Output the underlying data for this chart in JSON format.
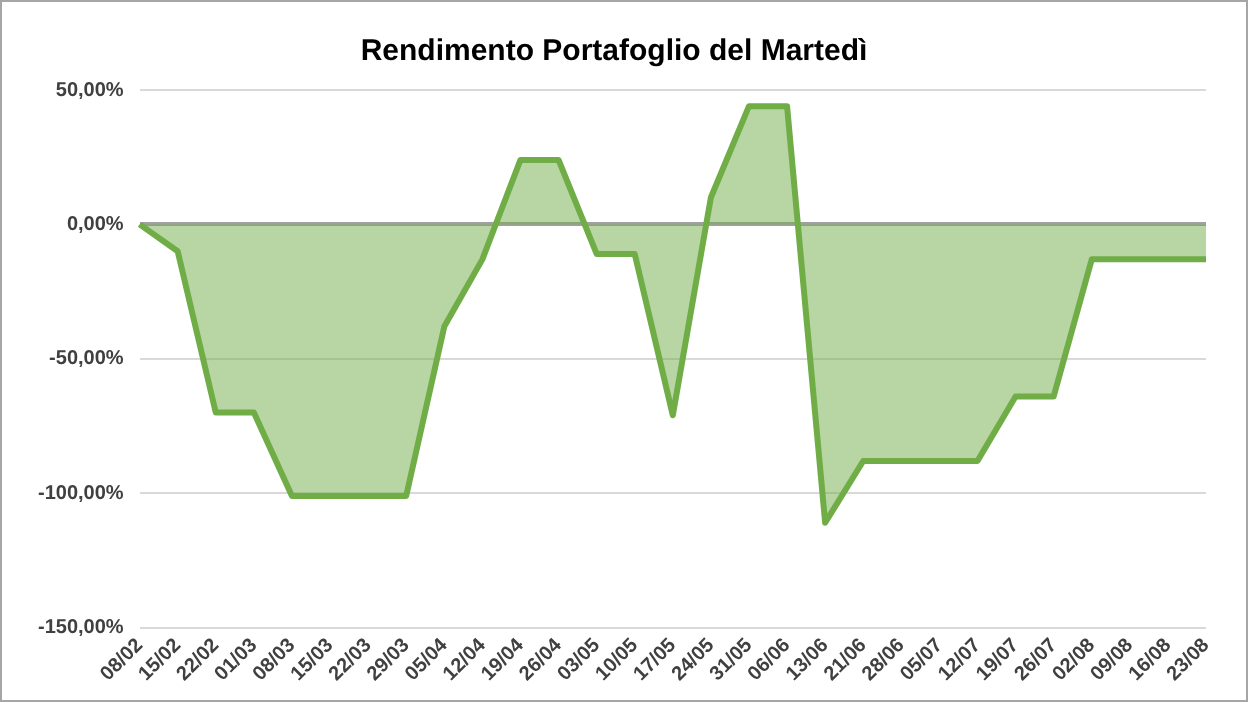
{
  "chart_data": {
    "type": "area",
    "title": "Rendimento Portafoglio del Martedì",
    "categories": [
      "08/02",
      "15/02",
      "22/02",
      "01/03",
      "08/03",
      "15/03",
      "22/03",
      "29/03",
      "05/04",
      "12/04",
      "19/04",
      "26/04",
      "03/05",
      "10/05",
      "17/05",
      "24/05",
      "31/05",
      "06/06",
      "13/06",
      "21/06",
      "28/06",
      "05/07",
      "12/07",
      "19/07",
      "26/07",
      "02/08",
      "09/08",
      "16/08",
      "23/08"
    ],
    "series": [
      {
        "color": "#70ad47",
        "values": [
          0,
          -10,
          -70,
          -70,
          -101,
          -101,
          -101,
          -101,
          -38,
          -13,
          24,
          24,
          -11,
          -11,
          -71,
          10,
          44,
          44,
          -111,
          -88,
          -88,
          -88,
          -88,
          -64,
          -64,
          -13,
          -13,
          -13,
          -13
        ]
      }
    ],
    "ylim": [
      -150,
      50
    ],
    "yticks": [
      {
        "value": -150,
        "label": "-150,00%"
      },
      {
        "value": -100,
        "label": "-100,00%"
      },
      {
        "value": -50,
        "label": "-50,00%"
      },
      {
        "value": 0,
        "label": "0,00%"
      },
      {
        "value": 50,
        "label": "50,00%"
      }
    ],
    "grid": "y",
    "legend": false
  }
}
